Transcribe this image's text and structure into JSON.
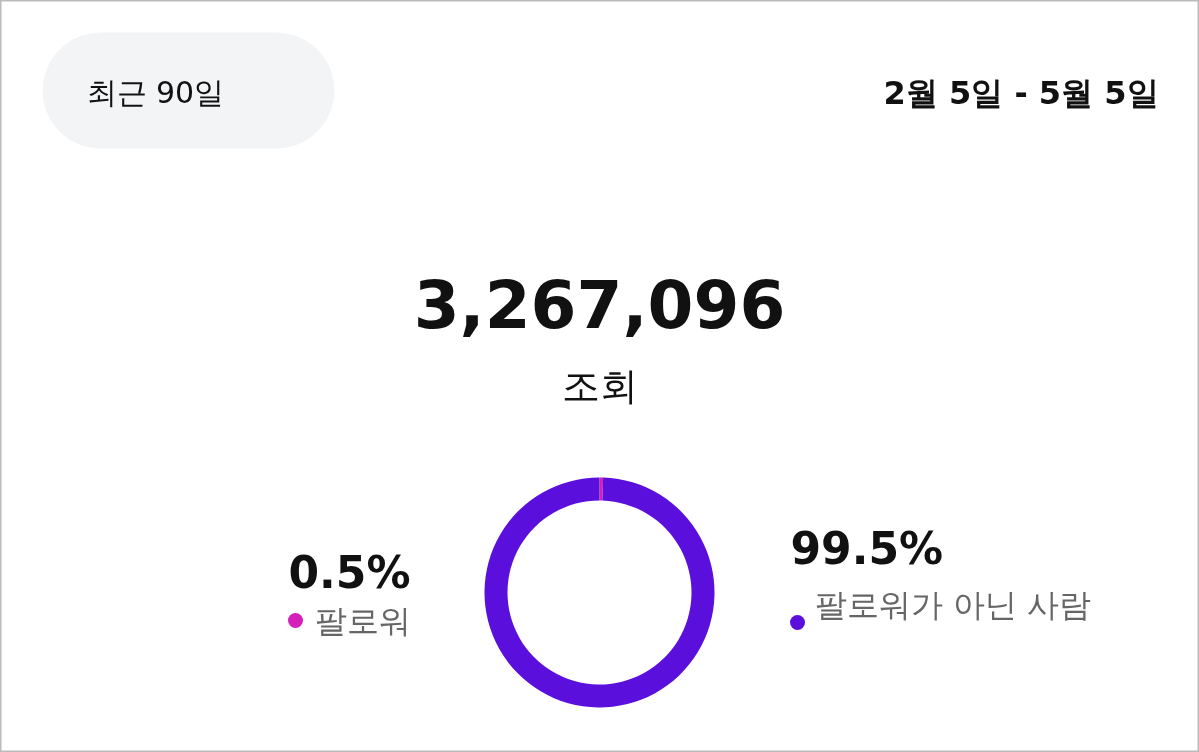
{
  "chart_data": {
    "type": "donut",
    "title": "3,267,096",
    "subtitle": "조회",
    "annotations": [
      "최근 90일",
      "2월 5일 - 5월 5일"
    ],
    "categories": [
      "팔로워",
      "팔로워가 아닌 사람"
    ],
    "values": [
      0.5,
      99.5
    ],
    "colors": [
      "#d41fb8",
      "#5b0fdc"
    ],
    "value_labels": [
      "0.5%",
      "99.5%"
    ],
    "legend": "bottom"
  }
}
